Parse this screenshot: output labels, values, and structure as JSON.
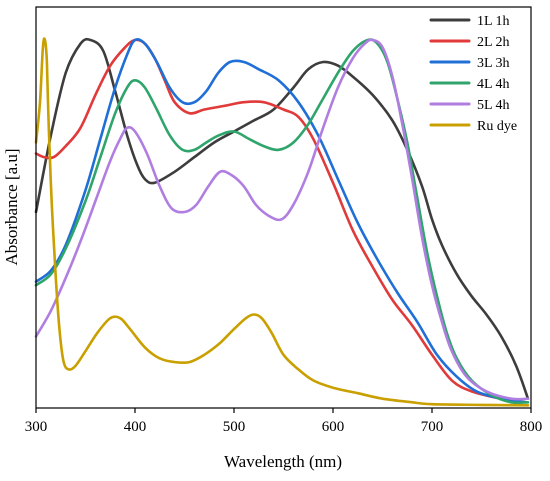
{
  "chart_data": {
    "type": "line",
    "title": "",
    "xlabel": "Wavelength (nm)",
    "ylabel": "Absorbance [a.u]",
    "xlim": [
      300,
      800
    ],
    "ylim": [
      0,
      1
    ],
    "x_ticks": [
      300,
      400,
      500,
      600,
      700,
      800
    ],
    "y_ticks_shown": false,
    "grid": false,
    "legend_position": "top-right",
    "series": [
      {
        "name": "1L 1h",
        "color": "#3d3d3d",
        "points": [
          [
            300,
            0.53
          ],
          [
            315,
            0.74
          ],
          [
            330,
            0.91
          ],
          [
            345,
            0.99
          ],
          [
            355,
            1.0
          ],
          [
            368,
            0.97
          ],
          [
            380,
            0.86
          ],
          [
            392,
            0.74
          ],
          [
            402,
            0.66
          ],
          [
            410,
            0.62
          ],
          [
            420,
            0.61
          ],
          [
            440,
            0.64
          ],
          [
            460,
            0.68
          ],
          [
            480,
            0.72
          ],
          [
            500,
            0.75
          ],
          [
            520,
            0.78
          ],
          [
            540,
            0.81
          ],
          [
            560,
            0.87
          ],
          [
            575,
            0.92
          ],
          [
            590,
            0.94
          ],
          [
            605,
            0.93
          ],
          [
            620,
            0.9
          ],
          [
            640,
            0.85
          ],
          [
            660,
            0.78
          ],
          [
            675,
            0.7
          ],
          [
            690,
            0.6
          ],
          [
            700,
            0.51
          ],
          [
            710,
            0.44
          ],
          [
            725,
            0.36
          ],
          [
            740,
            0.3
          ],
          [
            755,
            0.25
          ],
          [
            770,
            0.19
          ],
          [
            785,
            0.11
          ],
          [
            797,
            0.02
          ]
        ]
      },
      {
        "name": "2L 2h",
        "color": "#e03a3a",
        "points": [
          [
            300,
            0.69
          ],
          [
            308,
            0.68
          ],
          [
            318,
            0.68
          ],
          [
            330,
            0.71
          ],
          [
            345,
            0.76
          ],
          [
            360,
            0.85
          ],
          [
            375,
            0.93
          ],
          [
            390,
            0.98
          ],
          [
            400,
            1.0
          ],
          [
            410,
            0.99
          ],
          [
            420,
            0.95
          ],
          [
            430,
            0.89
          ],
          [
            440,
            0.83
          ],
          [
            455,
            0.8
          ],
          [
            470,
            0.81
          ],
          [
            490,
            0.82
          ],
          [
            510,
            0.83
          ],
          [
            530,
            0.83
          ],
          [
            550,
            0.81
          ],
          [
            565,
            0.79
          ],
          [
            580,
            0.73
          ],
          [
            600,
            0.61
          ],
          [
            620,
            0.48
          ],
          [
            640,
            0.38
          ],
          [
            660,
            0.29
          ],
          [
            680,
            0.22
          ],
          [
            700,
            0.14
          ],
          [
            720,
            0.07
          ],
          [
            740,
            0.04
          ],
          [
            770,
            0.02
          ],
          [
            795,
            0.01
          ]
        ]
      },
      {
        "name": "3L 3h",
        "color": "#1f6fd6",
        "points": [
          [
            300,
            0.34
          ],
          [
            315,
            0.37
          ],
          [
            330,
            0.44
          ],
          [
            350,
            0.59
          ],
          [
            365,
            0.73
          ],
          [
            380,
            0.87
          ],
          [
            392,
            0.96
          ],
          [
            400,
            1.0
          ],
          [
            410,
            0.99
          ],
          [
            422,
            0.94
          ],
          [
            435,
            0.87
          ],
          [
            448,
            0.83
          ],
          [
            460,
            0.83
          ],
          [
            472,
            0.86
          ],
          [
            484,
            0.91
          ],
          [
            496,
            0.94
          ],
          [
            510,
            0.94
          ],
          [
            525,
            0.92
          ],
          [
            545,
            0.89
          ],
          [
            565,
            0.83
          ],
          [
            585,
            0.74
          ],
          [
            605,
            0.62
          ],
          [
            625,
            0.5
          ],
          [
            645,
            0.4
          ],
          [
            665,
            0.31
          ],
          [
            685,
            0.23
          ],
          [
            705,
            0.14
          ],
          [
            725,
            0.08
          ],
          [
            745,
            0.04
          ],
          [
            770,
            0.02
          ],
          [
            795,
            0.01
          ]
        ]
      },
      {
        "name": "4L 4h",
        "color": "#2fa56c",
        "points": [
          [
            300,
            0.33
          ],
          [
            315,
            0.36
          ],
          [
            330,
            0.43
          ],
          [
            350,
            0.56
          ],
          [
            365,
            0.68
          ],
          [
            380,
            0.8
          ],
          [
            392,
            0.87
          ],
          [
            400,
            0.89
          ],
          [
            410,
            0.87
          ],
          [
            422,
            0.81
          ],
          [
            435,
            0.74
          ],
          [
            448,
            0.7
          ],
          [
            460,
            0.7
          ],
          [
            472,
            0.72
          ],
          [
            485,
            0.74
          ],
          [
            500,
            0.75
          ],
          [
            515,
            0.73
          ],
          [
            530,
            0.71
          ],
          [
            545,
            0.7
          ],
          [
            560,
            0.72
          ],
          [
            575,
            0.77
          ],
          [
            590,
            0.84
          ],
          [
            605,
            0.91
          ],
          [
            620,
            0.97
          ],
          [
            635,
            1.0
          ],
          [
            645,
            0.99
          ],
          [
            655,
            0.94
          ],
          [
            665,
            0.84
          ],
          [
            675,
            0.72
          ],
          [
            685,
            0.57
          ],
          [
            695,
            0.42
          ],
          [
            705,
            0.3
          ],
          [
            715,
            0.2
          ],
          [
            725,
            0.13
          ],
          [
            740,
            0.07
          ],
          [
            760,
            0.03
          ],
          [
            780,
            0.01
          ],
          [
            797,
            0.01
          ]
        ]
      },
      {
        "name": "5L 4h",
        "color": "#b07ee0",
        "points": [
          [
            300,
            0.19
          ],
          [
            315,
            0.26
          ],
          [
            330,
            0.35
          ],
          [
            345,
            0.45
          ],
          [
            360,
            0.56
          ],
          [
            375,
            0.67
          ],
          [
            385,
            0.73
          ],
          [
            392,
            0.76
          ],
          [
            400,
            0.75
          ],
          [
            412,
            0.69
          ],
          [
            425,
            0.6
          ],
          [
            437,
            0.54
          ],
          [
            450,
            0.53
          ],
          [
            462,
            0.55
          ],
          [
            474,
            0.6
          ],
          [
            486,
            0.64
          ],
          [
            498,
            0.63
          ],
          [
            510,
            0.6
          ],
          [
            522,
            0.55
          ],
          [
            535,
            0.52
          ],
          [
            548,
            0.51
          ],
          [
            560,
            0.55
          ],
          [
            575,
            0.64
          ],
          [
            590,
            0.76
          ],
          [
            605,
            0.87
          ],
          [
            620,
            0.95
          ],
          [
            632,
            0.99
          ],
          [
            640,
            1.0
          ],
          [
            650,
            0.98
          ],
          [
            660,
            0.9
          ],
          [
            670,
            0.77
          ],
          [
            680,
            0.62
          ],
          [
            690,
            0.46
          ],
          [
            700,
            0.33
          ],
          [
            710,
            0.23
          ],
          [
            720,
            0.15
          ],
          [
            735,
            0.08
          ],
          [
            755,
            0.04
          ],
          [
            780,
            0.02
          ],
          [
            797,
            0.02
          ]
        ]
      },
      {
        "name": "Ru dye",
        "color": "#c9a000",
        "points": [
          [
            300,
            0.72
          ],
          [
            304,
            0.83
          ],
          [
            307,
            0.98
          ],
          [
            309,
            1.0
          ],
          [
            311,
            0.94
          ],
          [
            313,
            0.75
          ],
          [
            316,
            0.55
          ],
          [
            320,
            0.35
          ],
          [
            324,
            0.2
          ],
          [
            328,
            0.12
          ],
          [
            333,
            0.1
          ],
          [
            340,
            0.11
          ],
          [
            350,
            0.15
          ],
          [
            362,
            0.2
          ],
          [
            375,
            0.24
          ],
          [
            385,
            0.24
          ],
          [
            395,
            0.21
          ],
          [
            410,
            0.16
          ],
          [
            425,
            0.13
          ],
          [
            440,
            0.12
          ],
          [
            455,
            0.12
          ],
          [
            470,
            0.14
          ],
          [
            485,
            0.17
          ],
          [
            500,
            0.21
          ],
          [
            512,
            0.24
          ],
          [
            520,
            0.25
          ],
          [
            528,
            0.24
          ],
          [
            538,
            0.2
          ],
          [
            550,
            0.14
          ],
          [
            565,
            0.1
          ],
          [
            580,
            0.07
          ],
          [
            600,
            0.05
          ],
          [
            625,
            0.035
          ],
          [
            650,
            0.02
          ],
          [
            680,
            0.01
          ],
          [
            700,
            0.005
          ],
          [
            750,
            0.003
          ],
          [
            797,
            0.002
          ]
        ]
      }
    ]
  }
}
